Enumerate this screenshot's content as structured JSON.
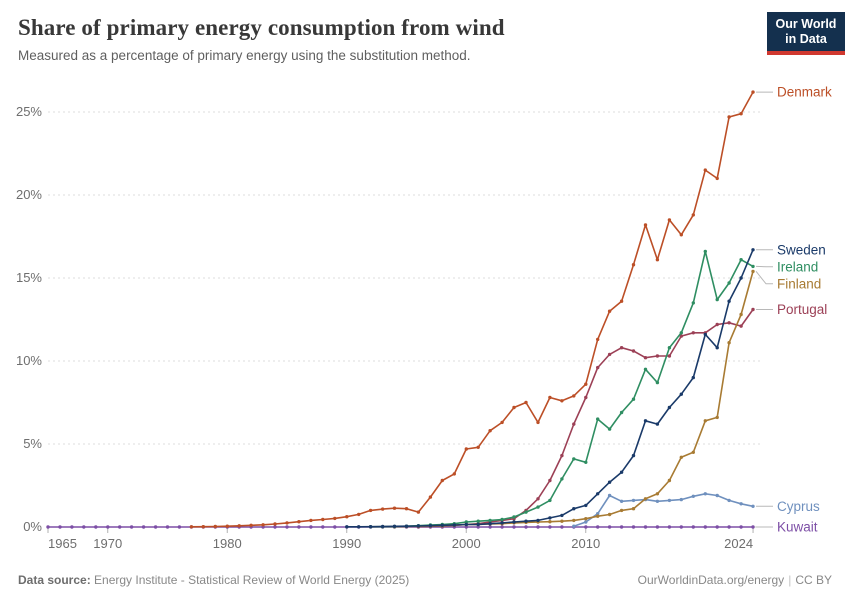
{
  "header": {
    "title": "Share of primary energy consumption from wind",
    "subtitle": "Measured as a percentage of primary energy using the substitution method.",
    "logo": {
      "line1": "Our World",
      "line2": "in Data"
    }
  },
  "footer": {
    "source_label": "Data source:",
    "source_text": " Energy Institute - Statistical Review of World Energy (2025)",
    "url": "OurWorldinData.org/energy",
    "separator": "|",
    "license": "CC BY"
  },
  "colors": {
    "background": "#ffffff",
    "gridline": "#dedede",
    "zero_line": "#cccccc",
    "axis_text": "#6e6e6e",
    "tick_mark": "#b0b0b0",
    "connector": "#b8b8b8",
    "logo_bg": "#14304e",
    "logo_accent": "#d0382f"
  },
  "chart_data": {
    "type": "line",
    "title": "Share of primary energy consumption from wind",
    "subtitle": "Measured as a percentage of primary energy using the substitution method.",
    "x_unit": "year",
    "xlim": [
      1965,
      2024
    ],
    "ylim": [
      0,
      26.5
    ],
    "xticks": [
      1965,
      1970,
      1980,
      1990,
      2000,
      2010,
      2024
    ],
    "yticks": [
      0,
      5,
      10,
      15,
      20,
      25
    ],
    "ytick_suffix": "%",
    "grid": true,
    "markers": true,
    "legend_position": "right-end-labels",
    "series": [
      {
        "name": "Denmark",
        "color": "#bc4f27",
        "start_year": 1977,
        "values": [
          0.01,
          0.02,
          0.03,
          0.05,
          0.07,
          0.1,
          0.13,
          0.18,
          0.25,
          0.32,
          0.4,
          0.45,
          0.52,
          0.62,
          0.76,
          1.0,
          1.08,
          1.13,
          1.1,
          0.9,
          1.8,
          2.8,
          3.2,
          4.7,
          4.8,
          5.8,
          6.3,
          7.2,
          7.5,
          6.3,
          7.8,
          7.6,
          7.9,
          8.6,
          11.3,
          13.0,
          13.6,
          15.8,
          18.2,
          16.1,
          18.5,
          17.6,
          18.8,
          21.5,
          21.0,
          24.7,
          24.9,
          26.2
        ]
      },
      {
        "name": "Sweden",
        "color": "#1a3a69",
        "start_year": 1990,
        "values": [
          0.01,
          0.01,
          0.02,
          0.03,
          0.04,
          0.05,
          0.06,
          0.08,
          0.1,
          0.12,
          0.15,
          0.15,
          0.2,
          0.25,
          0.3,
          0.35,
          0.4,
          0.55,
          0.7,
          1.1,
          1.3,
          2.0,
          2.7,
          3.3,
          4.3,
          6.4,
          6.2,
          7.2,
          8.0,
          9.0,
          11.6,
          10.8,
          13.6,
          15.0,
          16.7
        ]
      },
      {
        "name": "Ireland",
        "color": "#2f8e62",
        "start_year": 1992,
        "values": [
          0.01,
          0.02,
          0.03,
          0.05,
          0.08,
          0.12,
          0.15,
          0.2,
          0.3,
          0.35,
          0.4,
          0.45,
          0.6,
          0.9,
          1.2,
          1.6,
          2.9,
          4.1,
          3.9,
          6.5,
          5.9,
          6.9,
          7.7,
          9.5,
          8.7,
          10.8,
          11.7,
          13.5,
          16.6,
          13.7,
          14.7,
          16.1,
          15.7
        ]
      },
      {
        "name": "Finland",
        "color": "#a87b33",
        "start_year": 1992,
        "values": [
          0.01,
          0.02,
          0.02,
          0.03,
          0.05,
          0.06,
          0.08,
          0.1,
          0.15,
          0.15,
          0.18,
          0.2,
          0.25,
          0.28,
          0.3,
          0.32,
          0.35,
          0.4,
          0.5,
          0.65,
          0.75,
          1.0,
          1.1,
          1.7,
          2.0,
          2.8,
          4.2,
          4.5,
          6.4,
          6.6,
          11.1,
          12.8,
          15.4
        ]
      },
      {
        "name": "Portugal",
        "color": "#9c4056",
        "start_year": 1996,
        "values": [
          0.02,
          0.04,
          0.06,
          0.1,
          0.15,
          0.2,
          0.3,
          0.4,
          0.5,
          1.0,
          1.7,
          2.8,
          4.3,
          6.2,
          7.8,
          9.6,
          10.4,
          10.8,
          10.6,
          10.2,
          10.3,
          10.3,
          11.5,
          11.7,
          11.7,
          12.2,
          12.3,
          12.1,
          13.1
        ]
      },
      {
        "name": "Cyprus",
        "color": "#6f90be",
        "start_year": 2009,
        "values": [
          0.05,
          0.3,
          0.8,
          1.9,
          1.55,
          1.6,
          1.65,
          1.55,
          1.6,
          1.65,
          1.85,
          2.0,
          1.9,
          1.6,
          1.4,
          1.25
        ]
      },
      {
        "name": "Kuwait",
        "color": "#7d4fa6",
        "start_year": 1965,
        "values": [
          0,
          0,
          0,
          0,
          0,
          0,
          0,
          0,
          0,
          0,
          0,
          0,
          0,
          0,
          0,
          0,
          0,
          0,
          0,
          0,
          0,
          0,
          0,
          0,
          0,
          0,
          0,
          0,
          0,
          0,
          0,
          0,
          0,
          0,
          0,
          0,
          0,
          0,
          0,
          0,
          0,
          0,
          0,
          0,
          0,
          0,
          0,
          0,
          0,
          0,
          0,
          0,
          0,
          0,
          0,
          0,
          0,
          0,
          0,
          0
        ]
      }
    ]
  }
}
